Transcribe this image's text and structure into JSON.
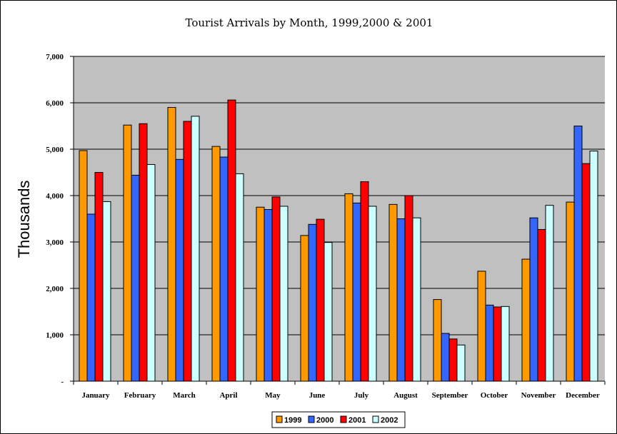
{
  "chart_data": {
    "type": "bar",
    "title": "Tourist Arrivals by Month, 1999,2000 & 2001",
    "xlabel": "",
    "ylabel": "Thousands",
    "ylim": [
      0,
      7000
    ],
    "yticks": [
      "-",
      "1,000",
      "2,000",
      "3,000",
      "4,000",
      "5,000",
      "6,000",
      "7,000"
    ],
    "grid": true,
    "legend_position": "bottom",
    "categories": [
      "January",
      "February",
      "March",
      "April",
      "May",
      "June",
      "July",
      "August",
      "September",
      "October",
      "November",
      "December"
    ],
    "series": [
      {
        "name": "1999",
        "color": "#FF9900",
        "values": [
          4970,
          5520,
          5900,
          5060,
          3750,
          3140,
          4040,
          3810,
          1760,
          2370,
          2630,
          3860
        ]
      },
      {
        "name": "2000",
        "color": "#3366FF",
        "values": [
          3600,
          4440,
          4780,
          4830,
          3700,
          3380,
          3840,
          3500,
          1030,
          1640,
          3520,
          5500
        ]
      },
      {
        "name": "2001",
        "color": "#FF0000",
        "values": [
          4500,
          5550,
          5600,
          6060,
          3970,
          3490,
          4300,
          4000,
          910,
          1600,
          3270,
          4690
        ]
      },
      {
        "name": "2002",
        "color": "#CCFFFF",
        "values": [
          3870,
          4670,
          5710,
          4470,
          3770,
          2990,
          3770,
          3520,
          780,
          1610,
          3790,
          4960
        ]
      }
    ],
    "plot_background": "#C0C0C0"
  }
}
